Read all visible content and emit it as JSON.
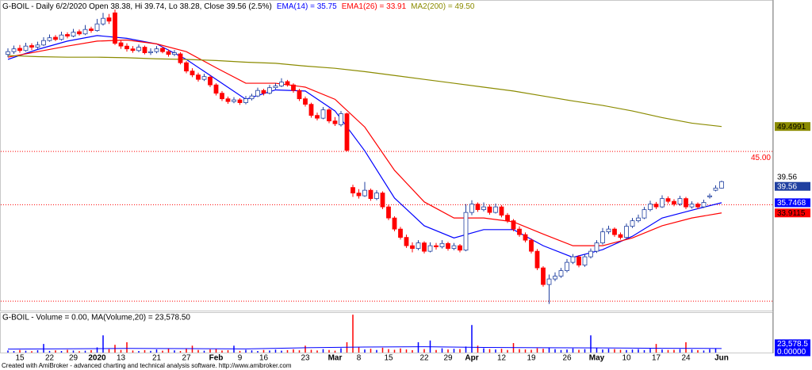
{
  "chart_data": [
    {
      "type": "candlestick",
      "title": "G-BOIL - Daily 6/2/2020 Open 38.38, Hi 39.74, Lo 38.28, Close 39.56 (2.5%)",
      "ylim": [
        16.3,
        71.6
      ],
      "up_color": "#ffffff",
      "up_stroke": "#2040a0",
      "down_color": "#ff0000",
      "ohlc": [
        [
          62.5,
          63.6,
          62.0,
          63.0
        ],
        [
          63.0,
          64.1,
          62.6,
          63.5
        ],
        [
          63.6,
          64.2,
          62.8,
          63.2
        ],
        [
          63.2,
          64.6,
          63.0,
          64.0
        ],
        [
          64.1,
          64.5,
          63.3,
          63.8
        ],
        [
          63.8,
          64.8,
          63.5,
          64.2
        ],
        [
          64.2,
          65.6,
          64.0,
          65.0
        ],
        [
          65.0,
          66.1,
          64.8,
          65.5
        ],
        [
          65.6,
          66.0,
          64.9,
          65.2
        ],
        [
          65.2,
          66.6,
          65.0,
          66.0
        ],
        [
          66.1,
          66.5,
          65.4,
          65.8
        ],
        [
          65.8,
          67.1,
          65.6,
          66.5
        ],
        [
          66.6,
          67.0,
          65.9,
          66.2
        ],
        [
          66.2,
          67.8,
          66.0,
          67.0
        ],
        [
          67.1,
          67.5,
          66.4,
          66.8
        ],
        [
          66.8,
          68.9,
          66.6,
          68.0
        ],
        [
          68.0,
          70.0,
          67.7,
          69.0
        ],
        [
          69.1,
          69.8,
          68.0,
          68.5
        ],
        [
          70.0,
          70.6,
          64.2,
          64.5
        ],
        [
          64.6,
          65.0,
          63.5,
          64.0
        ],
        [
          64.0,
          64.5,
          63.0,
          63.5
        ],
        [
          63.5,
          64.0,
          62.8,
          63.2
        ],
        [
          63.2,
          64.3,
          62.9,
          63.8
        ],
        [
          63.8,
          64.1,
          62.5,
          62.8
        ],
        [
          62.8,
          63.6,
          62.4,
          63.0
        ],
        [
          63.0,
          64.0,
          62.7,
          63.5
        ],
        [
          63.6,
          63.9,
          62.7,
          63.0
        ],
        [
          63.0,
          63.4,
          62.1,
          62.5
        ],
        [
          62.5,
          63.3,
          62.2,
          62.8
        ],
        [
          62.6,
          62.9,
          60.7,
          61.0
        ],
        [
          61.0,
          61.3,
          59.1,
          59.5
        ],
        [
          59.5,
          60.0,
          58.4,
          58.8
        ],
        [
          58.8,
          59.2,
          57.6,
          58.0
        ],
        [
          58.0,
          59.0,
          57.7,
          58.5
        ],
        [
          58.4,
          58.7,
          56.6,
          57.0
        ],
        [
          57.0,
          57.3,
          55.1,
          55.5
        ],
        [
          55.5,
          55.9,
          54.1,
          54.5
        ],
        [
          54.5,
          54.9,
          53.6,
          54.0
        ],
        [
          54.0,
          54.8,
          53.7,
          54.3
        ],
        [
          54.3,
          54.6,
          53.4,
          53.8
        ],
        [
          53.8,
          55.0,
          53.5,
          54.5
        ],
        [
          54.5,
          55.4,
          54.2,
          55.0
        ],
        [
          55.0,
          56.5,
          54.8,
          56.0
        ],
        [
          56.0,
          56.3,
          55.1,
          55.5
        ],
        [
          55.5,
          57.0,
          55.3,
          56.5
        ],
        [
          56.5,
          57.3,
          56.2,
          56.8
        ],
        [
          56.8,
          58.2,
          56.6,
          57.5
        ],
        [
          57.6,
          57.9,
          56.7,
          57.0
        ],
        [
          57.0,
          57.3,
          55.6,
          56.0
        ],
        [
          56.0,
          56.3,
          54.1,
          54.5
        ],
        [
          54.5,
          54.9,
          53.1,
          53.5
        ],
        [
          53.5,
          53.8,
          51.1,
          51.5
        ],
        [
          51.5,
          52.0,
          50.6,
          51.0
        ],
        [
          51.0,
          53.0,
          50.8,
          52.5
        ],
        [
          52.5,
          52.8,
          50.1,
          50.5
        ],
        [
          50.5,
          51.2,
          49.6,
          50.0
        ],
        [
          49.8,
          52.3,
          49.5,
          51.8
        ],
        [
          51.8,
          52.0,
          45.0,
          45.2
        ],
        [
          38.5,
          39.0,
          36.8,
          37.5
        ],
        [
          37.5,
          38.2,
          36.5,
          37.0
        ],
        [
          37.0,
          39.5,
          36.8,
          38.0
        ],
        [
          38.0,
          38.3,
          36.1,
          36.5
        ],
        [
          36.5,
          38.0,
          36.2,
          37.5
        ],
        [
          37.5,
          37.8,
          34.6,
          35.0
        ],
        [
          35.0,
          35.4,
          32.6,
          33.0
        ],
        [
          33.0,
          33.3,
          30.6,
          31.0
        ],
        [
          31.0,
          31.4,
          29.1,
          29.5
        ],
        [
          29.5,
          30.0,
          27.6,
          28.0
        ],
        [
          28.0,
          28.6,
          26.8,
          27.5
        ],
        [
          27.5,
          29.0,
          27.2,
          28.5
        ],
        [
          28.5,
          28.8,
          26.6,
          27.0
        ],
        [
          27.0,
          28.6,
          26.8,
          28.0
        ],
        [
          28.0,
          28.5,
          27.3,
          27.8
        ],
        [
          27.8,
          29.0,
          27.5,
          28.4
        ],
        [
          28.4,
          28.7,
          27.1,
          27.5
        ],
        [
          27.5,
          28.5,
          27.2,
          28.0
        ],
        [
          28.0,
          28.3,
          26.8,
          27.2
        ],
        [
          27.2,
          35.5,
          27.0,
          34.0
        ],
        [
          34.0,
          36.2,
          33.5,
          35.5
        ],
        [
          35.5,
          35.8,
          34.1,
          34.5
        ],
        [
          34.5,
          35.8,
          34.2,
          35.0
        ],
        [
          35.0,
          35.4,
          33.6,
          34.0
        ],
        [
          34.0,
          35.6,
          33.8,
          35.0
        ],
        [
          35.0,
          35.3,
          33.1,
          33.5
        ],
        [
          33.5,
          33.9,
          32.1,
          32.5
        ],
        [
          32.5,
          32.8,
          30.6,
          31.0
        ],
        [
          31.0,
          31.5,
          29.6,
          30.0
        ],
        [
          30.0,
          30.4,
          28.6,
          29.0
        ],
        [
          29.0,
          29.3,
          26.6,
          27.0
        ],
        [
          27.0,
          27.4,
          23.6,
          24.0
        ],
        [
          24.0,
          24.3,
          20.6,
          21.0
        ],
        [
          21.0,
          22.8,
          17.5,
          22.0
        ],
        [
          22.0,
          23.2,
          21.6,
          22.5
        ],
        [
          22.5,
          24.0,
          22.2,
          23.5
        ],
        [
          23.5,
          25.6,
          23.2,
          25.0
        ],
        [
          25.0,
          26.5,
          24.7,
          26.0
        ],
        [
          26.0,
          26.3,
          24.1,
          24.5
        ],
        [
          24.5,
          26.5,
          24.2,
          26.0
        ],
        [
          26.0,
          27.5,
          25.7,
          27.0
        ],
        [
          27.0,
          29.0,
          26.7,
          28.5
        ],
        [
          28.5,
          31.2,
          28.2,
          30.5
        ],
        [
          30.5,
          31.6,
          30.1,
          31.0
        ],
        [
          31.0,
          31.3,
          29.6,
          30.0
        ],
        [
          30.0,
          30.4,
          29.1,
          29.5
        ],
        [
          29.5,
          32.0,
          29.2,
          31.5
        ],
        [
          31.5,
          33.0,
          31.2,
          32.5
        ],
        [
          32.5,
          33.6,
          32.2,
          33.0
        ],
        [
          33.0,
          35.0,
          32.8,
          34.5
        ],
        [
          34.5,
          36.1,
          34.2,
          35.5
        ],
        [
          35.5,
          35.9,
          34.6,
          35.0
        ],
        [
          35.0,
          37.1,
          34.8,
          36.5
        ],
        [
          36.5,
          36.9,
          35.6,
          36.0
        ],
        [
          36.0,
          36.4,
          35.1,
          35.5
        ],
        [
          35.5,
          37.0,
          35.2,
          36.5
        ],
        [
          36.5,
          36.8,
          34.6,
          35.0
        ],
        [
          35.0,
          36.0,
          34.7,
          35.5
        ],
        [
          35.5,
          35.8,
          34.6,
          35.0
        ],
        [
          35.0,
          36.3,
          34.8,
          35.8
        ],
        [
          36.8,
          37.4,
          36.5,
          37.0
        ],
        [
          38.0,
          38.9,
          37.8,
          38.4
        ],
        [
          38.38,
          39.74,
          38.28,
          39.56
        ]
      ],
      "close_label": "39.56",
      "series": [
        {
          "name": "EMA(14) = 35.75",
          "color": "#0000ff",
          "label_text": "#ffffff",
          "last_label": "35.7468",
          "x": [
            0,
            5,
            10,
            15,
            20,
            25,
            30,
            35,
            40,
            45,
            50,
            55,
            60,
            65,
            70,
            75,
            80,
            85,
            90,
            95,
            100,
            105,
            110,
            115,
            120
          ],
          "values": [
            61.6,
            63.4,
            64.9,
            65.9,
            65.4,
            64.4,
            61.6,
            58.0,
            54.4,
            56.1,
            55.9,
            52.3,
            45.1,
            36.6,
            31.6,
            29.4,
            30.9,
            30.9,
            28.0,
            25.9,
            27.3,
            29.7,
            33.0,
            34.4,
            35.75
          ]
        },
        {
          "name": "EMA1(26) = 33.91",
          "color": "#ff0000",
          "label_text": "#000000",
          "last_label": "33.9115",
          "x": [
            0,
            5,
            10,
            15,
            20,
            25,
            30,
            35,
            40,
            45,
            50,
            55,
            60,
            65,
            70,
            75,
            80,
            85,
            90,
            95,
            100,
            105,
            110,
            115,
            120
          ],
          "values": [
            62.0,
            63.0,
            64.0,
            64.9,
            65.1,
            64.4,
            63.0,
            60.1,
            57.3,
            57.3,
            56.6,
            54.4,
            49.4,
            41.6,
            35.9,
            33.0,
            33.0,
            32.3,
            30.1,
            28.0,
            28.0,
            29.4,
            31.6,
            33.0,
            33.91
          ]
        },
        {
          "name": "MA2(200) = 49.50",
          "color": "#8b8b00",
          "label_text": "#000000",
          "last_label": "49.4991",
          "x": [
            0,
            5,
            10,
            15,
            20,
            25,
            30,
            35,
            40,
            45,
            50,
            55,
            60,
            65,
            70,
            75,
            80,
            85,
            90,
            95,
            100,
            105,
            110,
            115,
            120
          ],
          "values": [
            62.3,
            62.1,
            62.0,
            62.0,
            61.9,
            61.7,
            61.6,
            61.4,
            61.1,
            60.9,
            60.4,
            60.0,
            59.4,
            58.7,
            58.0,
            57.3,
            56.6,
            55.9,
            55.0,
            54.1,
            53.3,
            52.3,
            51.1,
            50.1,
            49.5
          ]
        }
      ],
      "hlines": [
        {
          "value": 45,
          "label": "45.00",
          "color": "#ff0000"
        },
        {
          "value": 35.4,
          "color": "#ff0000"
        },
        {
          "value": 18.0,
          "color": "#ff0000"
        }
      ]
    },
    {
      "type": "bar",
      "title": "G-BOIL - Volume = 0.00, MA(Volume,20) = 23,578.50",
      "ylim": [
        0,
        230000
      ],
      "up_color": "#0000ff",
      "down_color": "#ff0000",
      "categories": [
        null,
        null,
        "15",
        null,
        null,
        null,
        null,
        "22",
        null,
        null,
        null,
        "29",
        null,
        null,
        null,
        "2020",
        null,
        null,
        null,
        "13",
        null,
        null,
        null,
        null,
        null,
        "21",
        null,
        null,
        null,
        null,
        "27",
        null,
        null,
        null,
        null,
        "Feb",
        null,
        null,
        null,
        "9",
        null,
        null,
        null,
        "16",
        null,
        null,
        null,
        null,
        null,
        null,
        "23",
        null,
        null,
        null,
        null,
        "Mar",
        null,
        null,
        null,
        "8",
        null,
        null,
        null,
        null,
        "15",
        null,
        null,
        null,
        null,
        null,
        "22",
        null,
        null,
        null,
        "29",
        null,
        null,
        null,
        "Apr",
        null,
        null,
        null,
        null,
        "12",
        null,
        null,
        null,
        null,
        "19",
        null,
        null,
        null,
        null,
        null,
        "26",
        null,
        null,
        null,
        null,
        "May",
        null,
        null,
        null,
        null,
        "10",
        null,
        null,
        null,
        null,
        "17",
        null,
        null,
        null,
        null,
        "24",
        null,
        null,
        null,
        null,
        null,
        "Jun"
      ],
      "values": [
        12000,
        9000,
        15000,
        11000,
        8000,
        14000,
        50000,
        10000,
        13000,
        9000,
        16000,
        12000,
        8000,
        11000,
        14000,
        30000,
        100000,
        20000,
        45000,
        15000,
        60000,
        12000,
        9000,
        14000,
        10000,
        18000,
        11000,
        25000,
        13000,
        9000,
        22000,
        40000,
        15000,
        11000,
        18000,
        20000,
        12000,
        14000,
        40000,
        10000,
        16000,
        13000,
        9000,
        15000,
        12000,
        17000,
        11000,
        14000,
        19000,
        13000,
        40000,
        16000,
        12000,
        20000,
        15000,
        11000,
        25000,
        60000,
        220000,
        30000,
        18000,
        22000,
        15000,
        28000,
        20000,
        16000,
        24000,
        18000,
        14000,
        60000,
        20000,
        70000,
        15000,
        25000,
        18000,
        22000,
        20000,
        35000,
        160000,
        40000,
        25000,
        20000,
        18000,
        22000,
        15000,
        55000,
        20000,
        18000,
        16000,
        25000,
        22000,
        30000,
        20000,
        15000,
        18000,
        24000,
        16000,
        20000,
        100000,
        25000,
        18000,
        22000,
        20000,
        16000,
        15000,
        18000,
        20000,
        14000,
        22000,
        50000,
        18000,
        15000,
        16000,
        20000,
        60000,
        18000,
        14000,
        12000,
        20000,
        25000,
        0
      ],
      "last_label": "0.00000",
      "ma": {
        "color": "#0000ff",
        "last_label": "23,578.5",
        "x": [
          0,
          10,
          20,
          30,
          40,
          50,
          60,
          70,
          80,
          90,
          100,
          110,
          120
        ],
        "values": [
          20000,
          22000,
          24000,
          23000,
          21000,
          28000,
          32000,
          34000,
          30000,
          28000,
          27000,
          25000,
          23578.5
        ]
      }
    }
  ],
  "footer": "Created with AmiBroker - advanced charting and technical analysis software. http://www.amibroker.com"
}
